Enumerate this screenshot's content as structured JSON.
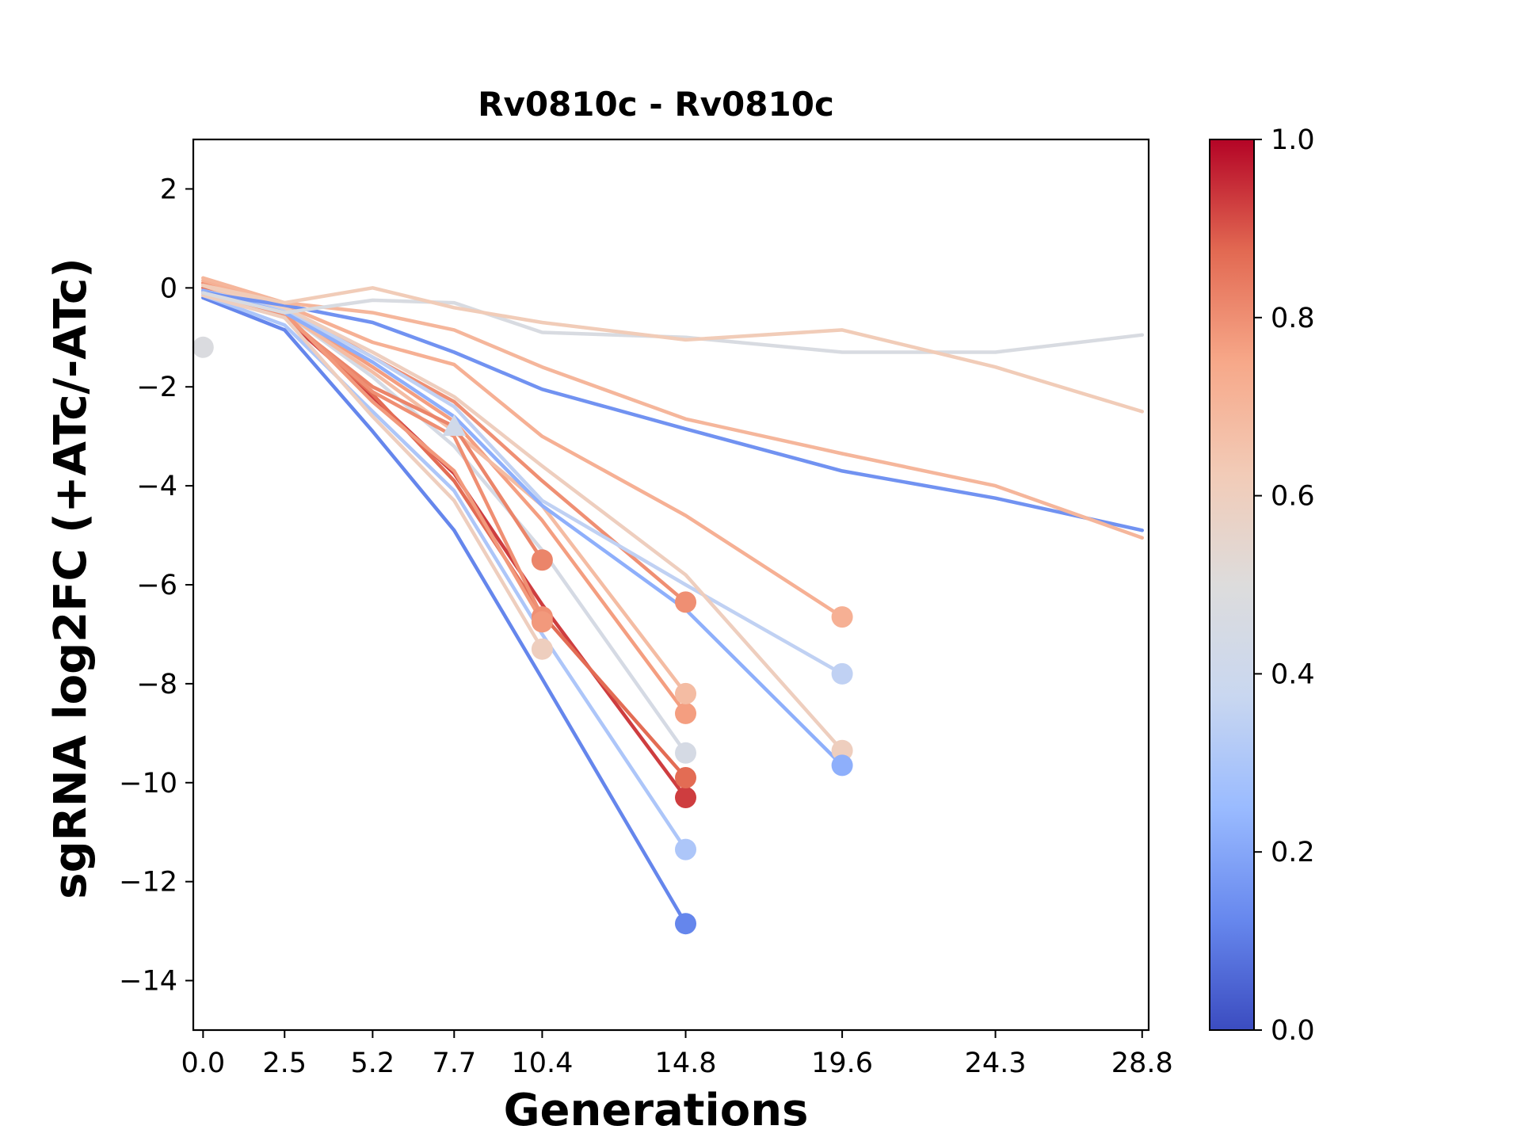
{
  "chart_data": {
    "type": "line",
    "title": "Rv0810c - Rv0810c",
    "xlabel": "Generations",
    "ylabel": "sgRNA log2FC (+ATc/-ATc)",
    "xlim": [
      -0.3,
      29.0
    ],
    "ylim": [
      -15,
      3
    ],
    "x_ticks": [
      {
        "value": 0.0,
        "label": "0.0"
      },
      {
        "value": 2.5,
        "label": "2.5"
      },
      {
        "value": 5.2,
        "label": "5.2"
      },
      {
        "value": 7.7,
        "label": "7.7"
      },
      {
        "value": 10.4,
        "label": "10.4"
      },
      {
        "value": 14.8,
        "label": "14.8"
      },
      {
        "value": 19.6,
        "label": "19.6"
      },
      {
        "value": 24.3,
        "label": "24.3"
      },
      {
        "value": 28.8,
        "label": "28.8"
      }
    ],
    "y_ticks": [
      {
        "value": 2,
        "label": "2"
      },
      {
        "value": 0,
        "label": "0"
      },
      {
        "value": -2,
        "label": "−2"
      },
      {
        "value": -4,
        "label": "−4"
      },
      {
        "value": -6,
        "label": "−6"
      },
      {
        "value": -8,
        "label": "−8"
      },
      {
        "value": -10,
        "label": "−10"
      },
      {
        "value": -12,
        "label": "−12"
      },
      {
        "value": -14,
        "label": "−14"
      }
    ],
    "grid": false,
    "colorbar": {
      "colormap": "coolwarm",
      "range": [
        0,
        1
      ],
      "ticks": [
        {
          "value": 0.0,
          "label": "0.0"
        },
        {
          "value": 0.2,
          "label": "0.2"
        },
        {
          "value": 0.4,
          "label": "0.4"
        },
        {
          "value": 0.6,
          "label": "0.6"
        },
        {
          "value": 0.8,
          "label": "0.8"
        },
        {
          "value": 1.0,
          "label": "1.0"
        }
      ],
      "stops": [
        "#3b4cc0",
        "#6788ee",
        "#9abbff",
        "#c9d7f0",
        "#dddcdc",
        "#f2cbb7",
        "#f7a889",
        "#e26952",
        "#b40426"
      ]
    },
    "series": [
      {
        "color_value": 0.12,
        "x": [
          0.0,
          2.5,
          5.2,
          7.7,
          10.4,
          14.8
        ],
        "y": [
          -0.2,
          -0.85,
          -2.9,
          -4.9,
          -7.9,
          -12.85
        ],
        "end_marker": "circle"
      },
      {
        "color_value": 0.3,
        "x": [
          0.0,
          2.5,
          5.2,
          7.7,
          10.4,
          14.8
        ],
        "y": [
          -0.15,
          -0.75,
          -2.5,
          -4.1,
          -7.0,
          -11.35
        ],
        "end_marker": "circle"
      },
      {
        "color_value": 0.93,
        "x": [
          0.0,
          2.5,
          5.2,
          7.7,
          10.4,
          14.8
        ],
        "y": [
          -0.05,
          -0.6,
          -2.2,
          -3.75,
          -6.4,
          -10.3
        ],
        "end_marker": "circle"
      },
      {
        "color_value": 0.87,
        "x": [
          0.0,
          2.5,
          5.2,
          7.7,
          10.4,
          14.8
        ],
        "y": [
          0.0,
          -0.55,
          -2.15,
          -3.9,
          -6.6,
          -9.9
        ],
        "end_marker": "circle"
      },
      {
        "color_value": 0.45,
        "x": [
          0.0,
          2.5,
          5.2,
          7.7,
          10.4,
          14.8
        ],
        "y": [
          0.05,
          -0.5,
          -1.8,
          -3.2,
          -5.3,
          -9.4
        ],
        "end_marker": "circle"
      },
      {
        "color_value": 0.77,
        "x": [
          0.0,
          2.5,
          5.2,
          7.7,
          10.4,
          14.8
        ],
        "y": [
          0.1,
          -0.45,
          -1.6,
          -2.7,
          -4.7,
          -8.6
        ],
        "end_marker": "circle"
      },
      {
        "color_value": 0.68,
        "x": [
          0.0,
          2.5,
          5.2,
          7.7,
          10.4,
          14.8
        ],
        "y": [
          0.05,
          -0.5,
          -1.7,
          -2.9,
          -4.4,
          -8.2
        ],
        "end_marker": "circle"
      },
      {
        "color_value": 0.8,
        "x": [
          0.0,
          2.5,
          5.2,
          7.7,
          10.4,
          14.8
        ],
        "y": [
          0.1,
          -0.4,
          -1.4,
          -2.3,
          -3.9,
          -6.35
        ],
        "end_marker": "circle"
      },
      {
        "color_value": 0.82,
        "x": [
          0.0,
          2.5,
          5.2,
          7.7,
          10.4
        ],
        "y": [
          -0.05,
          -0.6,
          -2.0,
          -2.8,
          -5.5
        ],
        "end_marker": "circle"
      },
      {
        "color_value": 0.8,
        "x": [
          0.0,
          2.5,
          5.2,
          7.7,
          10.4
        ],
        "y": [
          -0.1,
          -0.55,
          -2.1,
          -3.0,
          -6.65
        ],
        "end_marker": "circle"
      },
      {
        "color_value": 0.78,
        "x": [
          0.0,
          2.5,
          5.2,
          7.7,
          10.4
        ],
        "y": [
          -0.1,
          -0.5,
          -2.3,
          -3.7,
          -6.75
        ],
        "end_marker": "circle"
      },
      {
        "color_value": 0.6,
        "x": [
          0.0,
          2.5,
          5.2,
          7.7,
          10.4
        ],
        "y": [
          -0.15,
          -0.6,
          -2.6,
          -4.3,
          -7.3
        ],
        "end_marker": "circle"
      },
      {
        "color_value": 0.72,
        "x": [
          0.0,
          2.5,
          5.2,
          7.7,
          10.4,
          14.8,
          19.6
        ],
        "y": [
          0.15,
          -0.35,
          -1.1,
          -1.55,
          -3.0,
          -4.6,
          -6.65
        ],
        "end_marker": "circle"
      },
      {
        "color_value": 0.35,
        "x": [
          0.0,
          2.5,
          5.2,
          7.7,
          10.4,
          14.8,
          19.6
        ],
        "y": [
          -0.05,
          -0.45,
          -1.4,
          -2.4,
          -4.3,
          -6.0,
          -7.8
        ],
        "end_marker": "circle"
      },
      {
        "color_value": 0.6,
        "x": [
          0.0,
          2.5,
          5.2,
          7.7,
          10.4,
          14.8,
          19.6
        ],
        "y": [
          0.05,
          -0.4,
          -1.3,
          -2.2,
          -3.6,
          -5.8,
          -9.35
        ],
        "end_marker": "circle"
      },
      {
        "color_value": 0.22,
        "x": [
          0.0,
          2.5,
          5.2,
          7.7,
          10.4,
          14.8,
          19.6
        ],
        "y": [
          -0.05,
          -0.5,
          -1.5,
          -2.6,
          -4.4,
          -6.5,
          -9.65
        ],
        "end_marker": "circle"
      },
      {
        "color_value": 0.15,
        "x": [
          0.0,
          2.5,
          5.2,
          7.7,
          10.4,
          14.8,
          19.6,
          24.3,
          28.8
        ],
        "y": [
          -0.1,
          -0.35,
          -0.7,
          -1.3,
          -2.05,
          -2.85,
          -3.7,
          -4.25,
          -4.9
        ],
        "end_marker": null
      },
      {
        "color_value": 0.7,
        "x": [
          0.0,
          2.5,
          5.2,
          7.7,
          10.4,
          14.8,
          19.6,
          24.3,
          28.8
        ],
        "y": [
          0.2,
          -0.3,
          -0.5,
          -0.85,
          -1.6,
          -2.65,
          -3.35,
          -4.0,
          -5.05
        ],
        "end_marker": null
      },
      {
        "color_value": 0.47,
        "x": [
          0.0,
          2.5,
          5.2,
          7.7,
          10.4,
          14.8,
          19.6,
          24.3,
          28.8
        ],
        "y": [
          -0.1,
          -0.5,
          -0.25,
          -0.3,
          -0.9,
          -1.0,
          -1.3,
          -1.3,
          -0.95
        ],
        "end_marker": null
      },
      {
        "color_value": 0.62,
        "x": [
          0.0,
          2.5,
          5.2,
          7.7,
          10.4,
          14.8,
          19.6,
          24.3,
          28.8
        ],
        "y": [
          0.05,
          -0.3,
          0.0,
          -0.4,
          -0.7,
          -1.05,
          -0.85,
          -1.6,
          -2.5
        ],
        "end_marker": null
      }
    ],
    "extra_markers": [
      {
        "x": 0.0,
        "y": -1.2,
        "shape": "circle",
        "color_value": 0.48
      },
      {
        "x": 7.7,
        "y": -2.8,
        "shape": "triangle",
        "color_value": 0.42
      }
    ]
  }
}
